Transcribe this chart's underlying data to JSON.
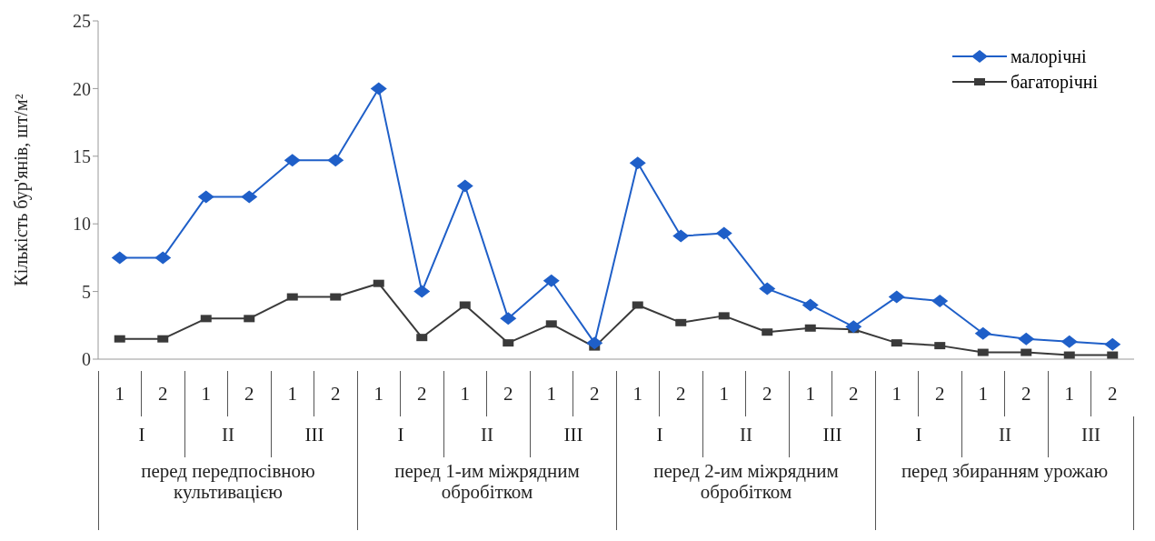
{
  "chart_data": {
    "type": "line",
    "ylabel": "Кількість бур'янів, шт/м²",
    "categories": [
      "1",
      "2",
      "1",
      "2",
      "1",
      "2",
      "1",
      "2",
      "1",
      "2",
      "1",
      "2",
      "1",
      "2",
      "1",
      "2",
      "1",
      "2",
      "1",
      "2",
      "1",
      "2",
      "1",
      "2"
    ],
    "series": [
      {
        "name": "малорічні",
        "color": "#1f5fc8",
        "values": [
          7.5,
          7.5,
          12,
          12,
          14.7,
          14.7,
          20,
          5,
          12.8,
          3,
          5.8,
          1.2,
          14.5,
          9.1,
          9.3,
          5.2,
          4,
          2.4,
          4.6,
          4.3,
          1.9,
          1.5,
          1.3,
          1.1
        ],
        "marker": "diamond"
      },
      {
        "name": "багаторічні",
        "color": "#3a3a3a",
        "values": [
          1.5,
          1.5,
          3,
          3,
          4.6,
          4.6,
          5.6,
          1.6,
          4,
          1.2,
          2.6,
          0.9,
          4,
          2.7,
          3.2,
          2,
          2.3,
          2.2,
          1.2,
          1,
          0.5,
          0.5,
          0.3,
          0.3
        ],
        "marker": "square"
      }
    ],
    "ylim": [
      0,
      25
    ],
    "yticks": [
      0,
      5,
      10,
      15,
      20,
      25
    ],
    "grid": false,
    "legend": "top right",
    "annotations": [
      "I",
      "II",
      "III",
      "I",
      "II",
      "III",
      "I",
      "II",
      "III",
      "I",
      "II",
      "III",
      "перед передпосівною культивацією",
      "перед 1-им міжрядним обробітком",
      "перед 2-им міжрядним обробітком",
      "перед збиранням урожаю"
    ]
  }
}
